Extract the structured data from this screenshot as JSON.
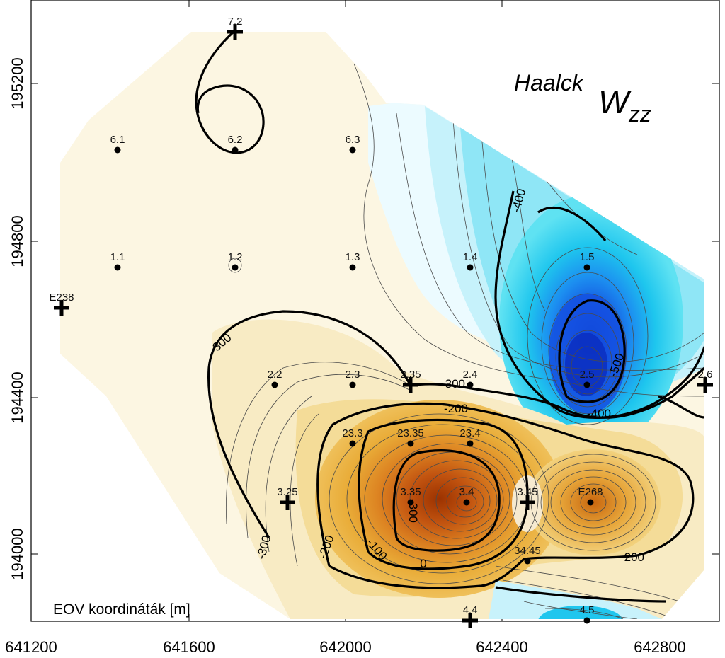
{
  "title": {
    "prefix": "Haalck",
    "symbol": "W",
    "subscript": "zz"
  },
  "coord_caption": "EOV koordináták [m]",
  "axes": {
    "x_ticks": [
      "641200",
      "641600",
      "642000",
      "642400",
      "642800"
    ],
    "y_ticks": [
      "194000",
      "194400",
      "194800",
      "195200"
    ]
  },
  "stations": [
    {
      "id": "7.2",
      "marker": "cross"
    },
    {
      "id": "6.1",
      "marker": "dot"
    },
    {
      "id": "6.2",
      "marker": "dot"
    },
    {
      "id": "6.3",
      "marker": "dot"
    },
    {
      "id": "1.1",
      "marker": "dot"
    },
    {
      "id": "1.2",
      "marker": "dot"
    },
    {
      "id": "1.3",
      "marker": "dot"
    },
    {
      "id": "1.4",
      "marker": "dot"
    },
    {
      "id": "1.5",
      "marker": "dot"
    },
    {
      "id": "E238",
      "marker": "cross"
    },
    {
      "id": "2.2",
      "marker": "dot"
    },
    {
      "id": "2.3",
      "marker": "dot"
    },
    {
      "id": "2.35",
      "marker": "cross"
    },
    {
      "id": "2.4",
      "marker": "dot"
    },
    {
      "id": "2.5",
      "marker": "dot"
    },
    {
      "id": "2.6",
      "marker": "cross"
    },
    {
      "id": "23.3",
      "marker": "dot"
    },
    {
      "id": "23.35",
      "marker": "dot"
    },
    {
      "id": "23.4",
      "marker": "dot"
    },
    {
      "id": "3.25",
      "marker": "cross"
    },
    {
      "id": "3.35",
      "marker": "dot"
    },
    {
      "id": "3.4",
      "marker": "dot"
    },
    {
      "id": "3.45",
      "marker": "cross"
    },
    {
      "id": "E268",
      "marker": "dot"
    },
    {
      "id": "34.45",
      "marker": "dot"
    },
    {
      "id": "4.4",
      "marker": "cross"
    },
    {
      "id": "4.5",
      "marker": "dot"
    }
  ],
  "contour_labels": [
    "-400",
    "-500",
    "-400",
    "-300",
    "-300",
    "-200",
    "-200",
    "-300",
    "-100",
    "0",
    "-200",
    "-300",
    "-200",
    "-300"
  ]
}
